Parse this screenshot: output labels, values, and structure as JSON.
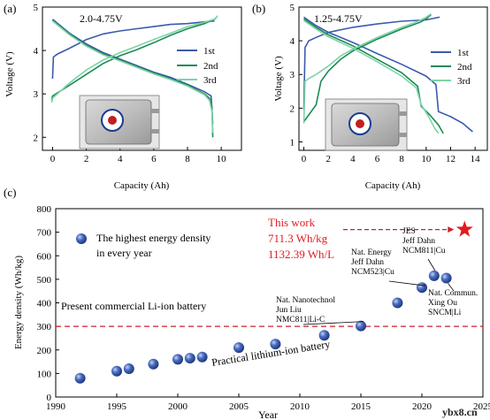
{
  "colors": {
    "first": "#3b5bab",
    "second": "#1a8a55",
    "third": "#7fd3a6",
    "dashed_red": "#d11f26",
    "work_red": "#e11b1f",
    "ball": "#3557a8"
  },
  "watermark": "ybx8.cn",
  "chart_data": [
    {
      "panel": "(a)",
      "type": "line",
      "annotation": "2.0-4.75V",
      "xlabel": "Capacity (Ah)",
      "ylabel": "Voltage (V)",
      "xlim": [
        -0.6,
        11.2
      ],
      "ylim": [
        1.7,
        5.0
      ],
      "xticks": [
        0,
        2,
        4,
        6,
        8,
        10
      ],
      "yticks": [
        2,
        3,
        4,
        5
      ],
      "legend": [
        "1st",
        "2nd",
        "3rd"
      ],
      "legend_position": "right",
      "inset": "pouch-cell photo",
      "series": [
        {
          "name": "1st",
          "role": "charge",
          "points": [
            [
              0,
              3.35
            ],
            [
              0.05,
              3.85
            ],
            [
              0.3,
              3.92
            ],
            [
              1,
              4.05
            ],
            [
              2,
              4.25
            ],
            [
              3,
              4.38
            ],
            [
              4,
              4.45
            ],
            [
              5,
              4.5
            ],
            [
              6,
              4.55
            ],
            [
              7,
              4.6
            ],
            [
              8,
              4.62
            ],
            [
              9,
              4.66
            ],
            [
              9.6,
              4.68
            ]
          ]
        },
        {
          "name": "1st",
          "role": "discharge",
          "points": [
            [
              0,
              4.72
            ],
            [
              1,
              4.4
            ],
            [
              2,
              4.15
            ],
            [
              3,
              3.95
            ],
            [
              4,
              3.8
            ],
            [
              5,
              3.65
            ],
            [
              6,
              3.5
            ],
            [
              7,
              3.38
            ],
            [
              8,
              3.22
            ],
            [
              9,
              3.05
            ],
            [
              9.4,
              2.95
            ],
            [
              9.5,
              2.3
            ]
          ]
        },
        {
          "name": "2nd",
          "role": "charge",
          "points": [
            [
              -0.05,
              2.85
            ],
            [
              0,
              2.95
            ],
            [
              1,
              3.2
            ],
            [
              2,
              3.45
            ],
            [
              3,
              3.7
            ],
            [
              4,
              3.88
            ],
            [
              5,
              4.02
            ],
            [
              6,
              4.18
            ],
            [
              7,
              4.35
            ],
            [
              8,
              4.5
            ],
            [
              9,
              4.62
            ],
            [
              9.6,
              4.72
            ],
            [
              9.7,
              4.75
            ]
          ]
        },
        {
          "name": "2nd",
          "role": "discharge",
          "points": [
            [
              0,
              4.7
            ],
            [
              1,
              4.38
            ],
            [
              2,
              4.12
            ],
            [
              3,
              3.92
            ],
            [
              4,
              3.78
            ],
            [
              5,
              3.63
            ],
            [
              6,
              3.48
            ],
            [
              7,
              3.35
            ],
            [
              8,
              3.2
            ],
            [
              9,
              3.0
            ],
            [
              9.3,
              2.9
            ],
            [
              9.45,
              2.7
            ],
            [
              9.5,
              2.0
            ]
          ]
        },
        {
          "name": "3rd",
          "role": "charge",
          "points": [
            [
              -0.05,
              2.8
            ],
            [
              0,
              2.9
            ],
            [
              1,
              3.25
            ],
            [
              2,
              3.55
            ],
            [
              3,
              3.78
            ],
            [
              4,
              3.95
            ],
            [
              5,
              4.1
            ],
            [
              6,
              4.25
            ],
            [
              7,
              4.4
            ],
            [
              8,
              4.55
            ],
            [
              9,
              4.65
            ],
            [
              9.6,
              4.72
            ],
            [
              9.8,
              4.8
            ]
          ]
        },
        {
          "name": "3rd",
          "role": "discharge",
          "points": [
            [
              0,
              4.68
            ],
            [
              1,
              4.36
            ],
            [
              2,
              4.1
            ],
            [
              3,
              3.9
            ],
            [
              4,
              3.76
            ],
            [
              5,
              3.61
            ],
            [
              6,
              3.46
            ],
            [
              7,
              3.33
            ],
            [
              8,
              3.18
            ],
            [
              9,
              2.98
            ],
            [
              9.3,
              2.85
            ],
            [
              9.45,
              2.6
            ],
            [
              9.5,
              2.1
            ]
          ]
        }
      ]
    },
    {
      "panel": "(b)",
      "type": "line",
      "annotation": "1.25-4.75V",
      "xlabel": "Capacity (Ah)",
      "ylabel": "Voltage (V)",
      "xlim": [
        -0.4,
        15.0
      ],
      "ylim": [
        0.75,
        5.0
      ],
      "xticks": [
        0,
        2,
        4,
        6,
        8,
        10,
        12,
        14
      ],
      "yticks": [
        1,
        2,
        3,
        4,
        5
      ],
      "legend": [
        "1st",
        "2nd",
        "3rd"
      ],
      "legend_position": "right",
      "inset": "pouch-cell photo",
      "series": [
        {
          "name": "1st",
          "role": "charge",
          "points": [
            [
              0,
              1.95
            ],
            [
              0.1,
              3.8
            ],
            [
              0.4,
              4.0
            ],
            [
              1,
              4.1
            ],
            [
              2,
              4.25
            ],
            [
              4,
              4.4
            ],
            [
              6,
              4.5
            ],
            [
              8,
              4.58
            ],
            [
              10,
              4.62
            ],
            [
              11.1,
              4.7
            ]
          ]
        },
        {
          "name": "1st",
          "role": "discharge",
          "points": [
            [
              0,
              4.7
            ],
            [
              1,
              4.45
            ],
            [
              2,
              4.25
            ],
            [
              4,
              3.95
            ],
            [
              6,
              3.62
            ],
            [
              8,
              3.3
            ],
            [
              10,
              2.95
            ],
            [
              10.8,
              2.7
            ],
            [
              11.0,
              1.9
            ],
            [
              12,
              1.75
            ],
            [
              13,
              1.55
            ],
            [
              13.8,
              1.3
            ]
          ]
        },
        {
          "name": "2nd",
          "role": "charge",
          "points": [
            [
              0,
              1.6
            ],
            [
              0.5,
              1.85
            ],
            [
              1,
              2.1
            ],
            [
              1.4,
              2.8
            ],
            [
              2,
              3.1
            ],
            [
              3,
              3.45
            ],
            [
              4,
              3.7
            ],
            [
              6,
              4.05
            ],
            [
              8,
              4.35
            ],
            [
              9.5,
              4.55
            ],
            [
              10,
              4.65
            ],
            [
              10.4,
              4.78
            ]
          ]
        },
        {
          "name": "2nd",
          "role": "discharge",
          "points": [
            [
              0,
              4.65
            ],
            [
              1,
              4.4
            ],
            [
              2,
              4.18
            ],
            [
              4,
              3.85
            ],
            [
              6,
              3.45
            ],
            [
              8,
              3.05
            ],
            [
              9.3,
              2.65
            ],
            [
              9.6,
              2.05
            ],
            [
              10.3,
              1.8
            ],
            [
              11,
              1.5
            ],
            [
              11.4,
              1.25
            ]
          ]
        },
        {
          "name": "3rd",
          "role": "charge",
          "points": [
            [
              0,
              1.55
            ],
            [
              0.1,
              2.8
            ],
            [
              0.5,
              2.9
            ],
            [
              1,
              3.0
            ],
            [
              2,
              3.25
            ],
            [
              3,
              3.55
            ],
            [
              4,
              3.75
            ],
            [
              6,
              4.1
            ],
            [
              8,
              4.4
            ],
            [
              9.5,
              4.6
            ],
            [
              10,
              4.7
            ],
            [
              10.4,
              4.8
            ]
          ]
        },
        {
          "name": "3rd",
          "role": "discharge",
          "points": [
            [
              0,
              4.6
            ],
            [
              1,
              4.35
            ],
            [
              2,
              4.12
            ],
            [
              4,
              3.78
            ],
            [
              6,
              3.38
            ],
            [
              8,
              2.95
            ],
            [
              9.2,
              2.6
            ],
            [
              9.6,
              2.1
            ],
            [
              10.2,
              1.75
            ],
            [
              10.7,
              1.4
            ],
            [
              11.0,
              1.25
            ]
          ]
        }
      ]
    },
    {
      "panel": "(c)",
      "type": "scatter",
      "xlabel": "Year",
      "ylabel": "Energy density (Wh/kg)",
      "xlim": [
        1990,
        2025
      ],
      "ylim": [
        0,
        800
      ],
      "xticks": [
        1990,
        1995,
        2000,
        2005,
        2010,
        2015,
        2020,
        2025
      ],
      "yticks": [
        0,
        100,
        200,
        300,
        400,
        500,
        600,
        700,
        800
      ],
      "legend": "The highest energy density\nin every year",
      "reference_line": {
        "y": 300,
        "label_above": "Present commercial  Li-ion battery"
      },
      "trend_label": "Practical  lithium-ion battery",
      "points": [
        {
          "x": 1992,
          "y": 80
        },
        {
          "x": 1995,
          "y": 110
        },
        {
          "x": 1996,
          "y": 120
        },
        {
          "x": 1998,
          "y": 140
        },
        {
          "x": 2000,
          "y": 160
        },
        {
          "x": 2001,
          "y": 165
        },
        {
          "x": 2002,
          "y": 170
        },
        {
          "x": 2005,
          "y": 210
        },
        {
          "x": 2008,
          "y": 225
        },
        {
          "x": 2012,
          "y": 262
        },
        {
          "x": 2015,
          "y": 302
        },
        {
          "x": 2018,
          "y": 400
        },
        {
          "x": 2020,
          "y": 465
        },
        {
          "x": 2021,
          "y": 515
        },
        {
          "x": 2022,
          "y": 505
        }
      ],
      "highlight": {
        "x": 2023.5,
        "y": 711.3,
        "marker": "star"
      },
      "this_work": [
        "This work",
        "711.3 Wh/kg",
        "1132.39  Wh/L"
      ],
      "annotations": [
        {
          "lines": [
            "Nat. Nanotechnol",
            "Jun Liu",
            "NMC811|Li-C"
          ],
          "point_year": 2015
        },
        {
          "lines": [
            "Nat. Energy",
            "Jeff Dahn",
            "NCM523|Cu"
          ],
          "point_year": 2020
        },
        {
          "lines": [
            "JES",
            "Jeff Dahn",
            "NCM811|Cu"
          ],
          "point_year": 2021
        },
        {
          "lines": [
            "Nat. Commun.",
            "Xing Ou",
            "SNCM|Li"
          ],
          "point_year": 2022
        }
      ]
    }
  ]
}
